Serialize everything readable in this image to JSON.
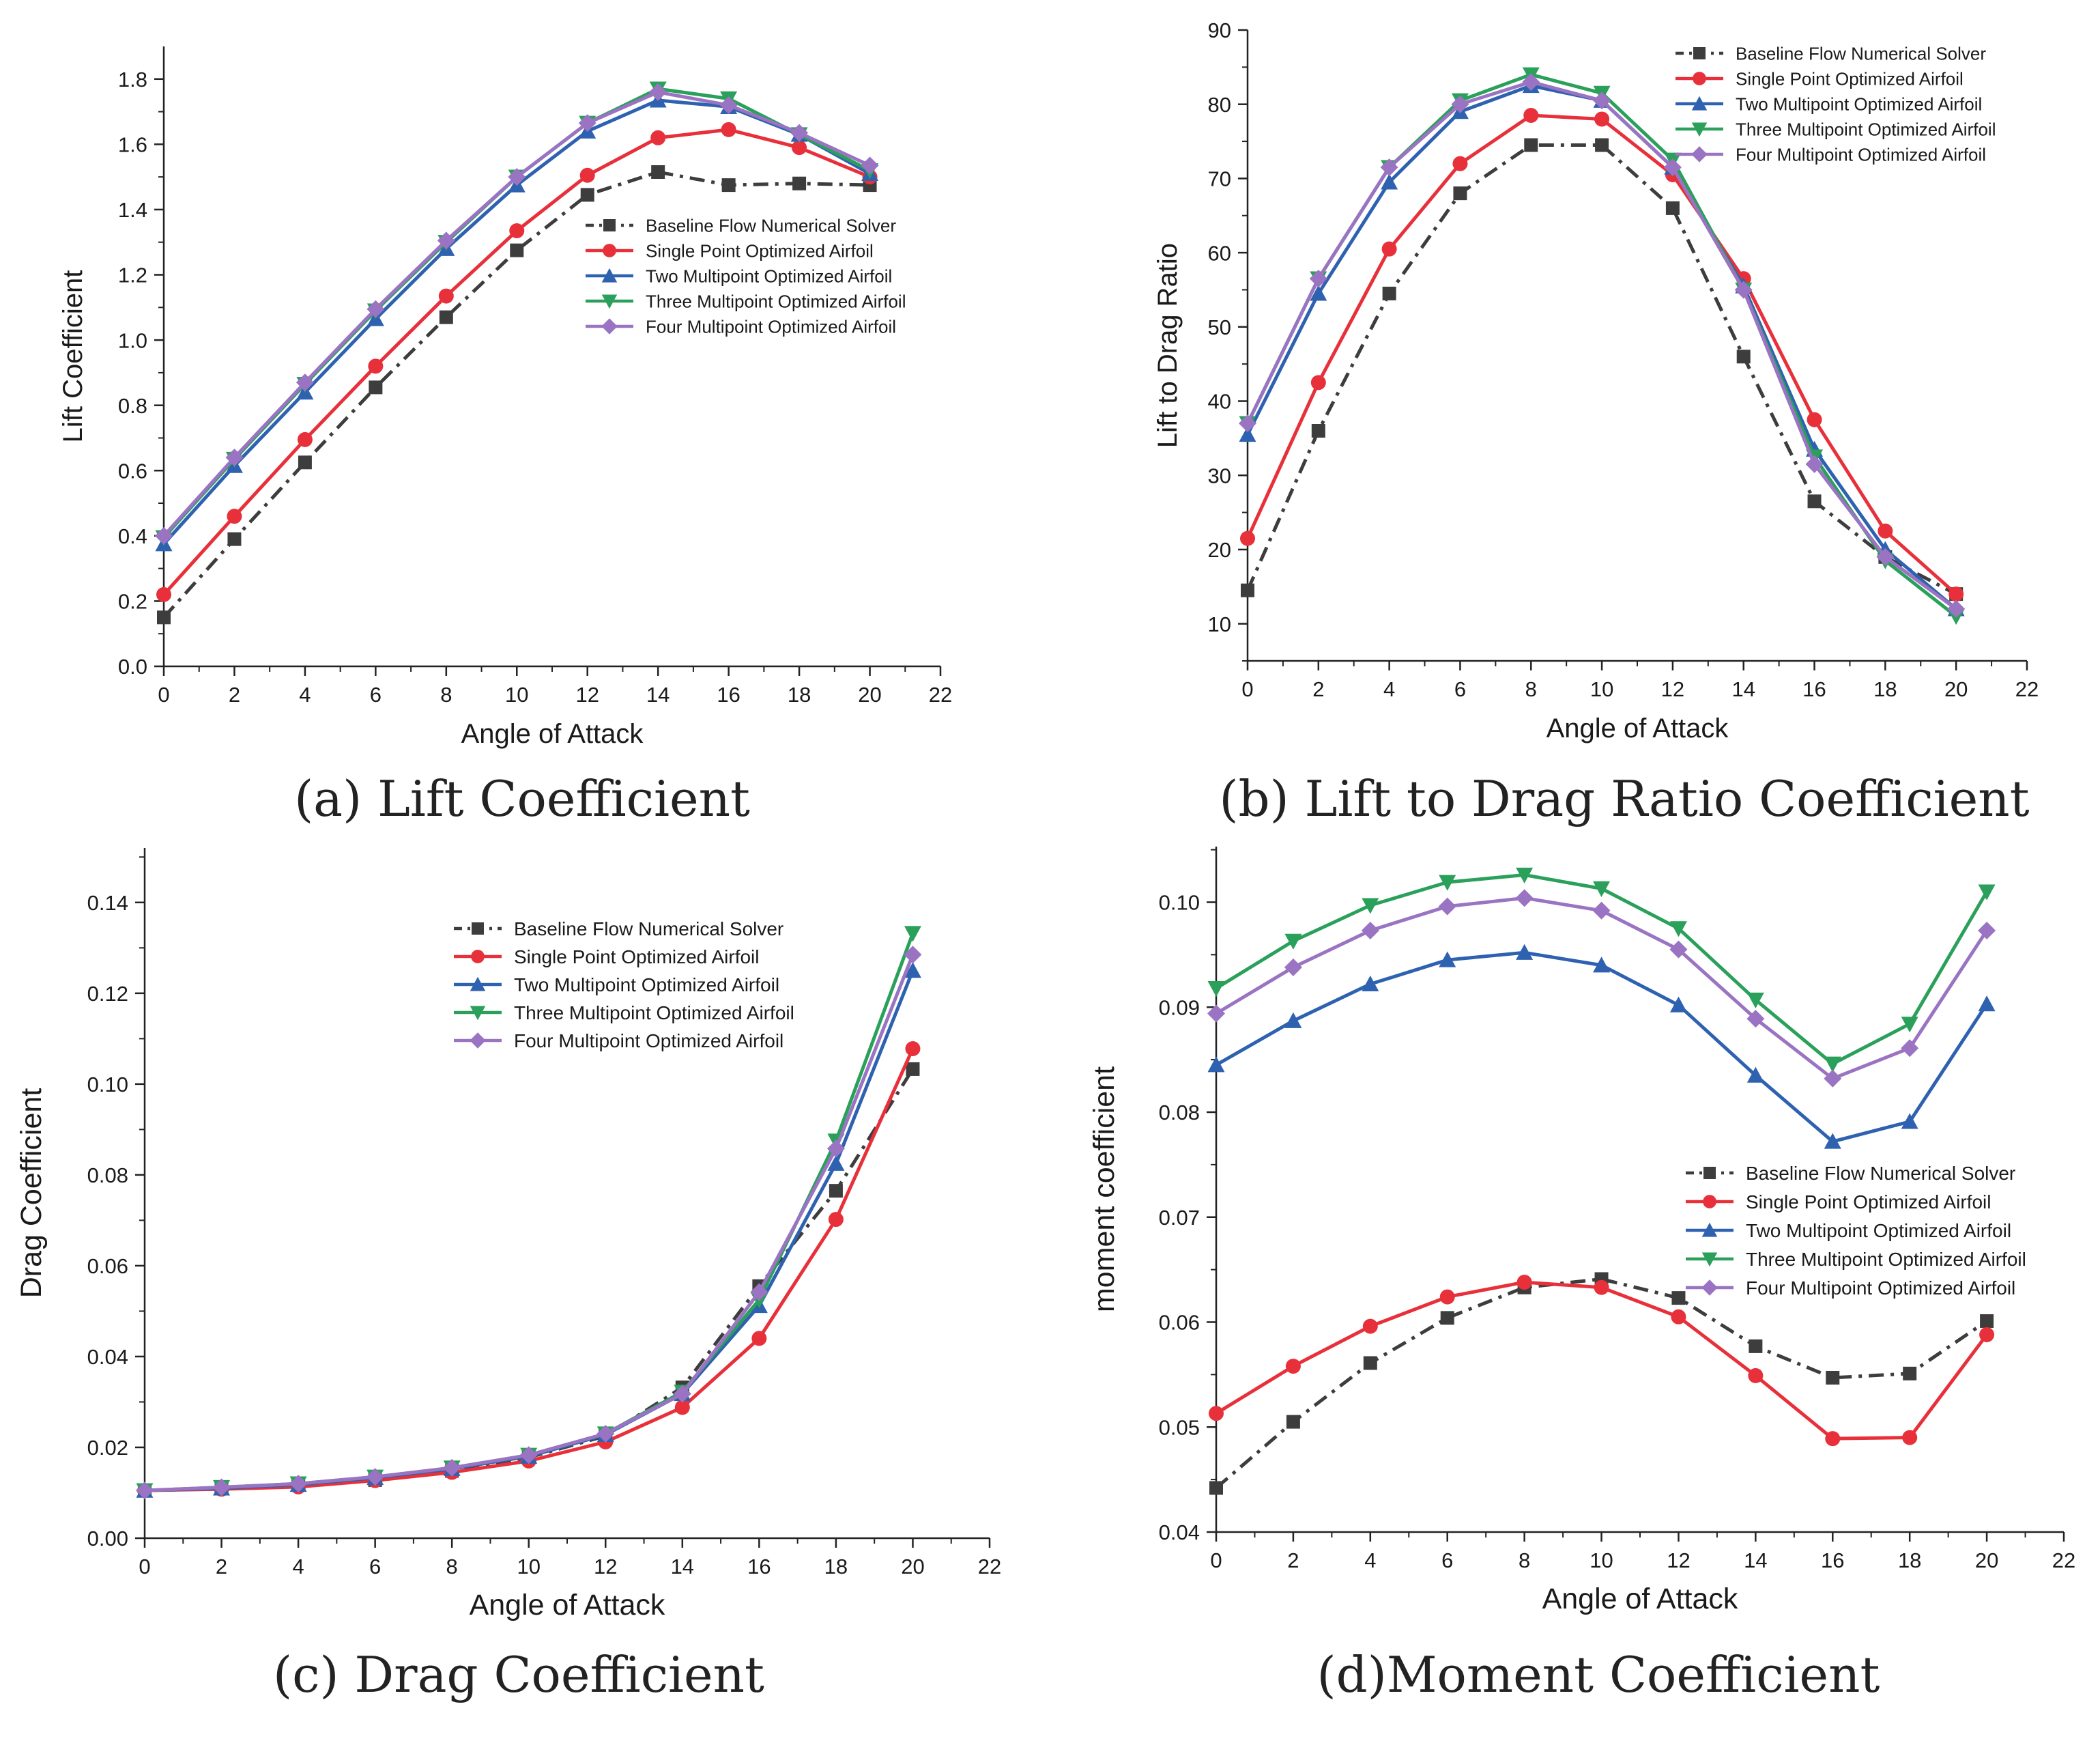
{
  "figure": {
    "colors": {
      "baseline": "#3d3d3d",
      "single": "#e8303a",
      "two": "#2e62b0",
      "three": "#2aa05a",
      "four": "#9a73c2",
      "axis": "#222222"
    }
  },
  "chart_data": [
    {
      "id": "a",
      "type": "line",
      "caption": "(a) Lift Coefficient",
      "xlabel": "Angle of Attack",
      "ylabel": "Lift Coefficient",
      "xlim": [
        0,
        22
      ],
      "ylim": [
        0.0,
        1.9
      ],
      "xticks": [
        "0",
        "2",
        "4",
        "6",
        "8",
        "10",
        "12",
        "14",
        "16",
        "18",
        "20",
        "22"
      ],
      "yticks": [
        "0.0",
        "0.2",
        "0.4",
        "0.6",
        "0.8",
        "1.0",
        "1.2",
        "1.4",
        "1.6",
        "1.8"
      ],
      "legend_position": "center-right",
      "x": [
        0,
        2,
        4,
        6,
        8,
        10,
        12,
        14,
        16,
        18,
        20
      ],
      "series": [
        {
          "name": "Baseline Flow Numerical Solver",
          "values": [
            0.15,
            0.39,
            0.625,
            0.855,
            1.07,
            1.275,
            1.445,
            1.515,
            1.475,
            1.48,
            1.475
          ]
        },
        {
          "name": "Single Point Optimized Airfoil",
          "values": [
            0.22,
            0.46,
            0.695,
            0.92,
            1.135,
            1.335,
            1.505,
            1.62,
            1.645,
            1.59,
            1.5
          ]
        },
        {
          "name": "Two Multipoint Optimized Airfoil",
          "values": [
            0.375,
            0.615,
            0.84,
            1.065,
            1.28,
            1.475,
            1.64,
            1.735,
            1.715,
            1.63,
            1.51
          ]
        },
        {
          "name": "Three Multipoint Optimized Airfoil",
          "values": [
            0.395,
            0.635,
            0.865,
            1.09,
            1.3,
            1.5,
            1.665,
            1.77,
            1.74,
            1.63,
            1.52
          ]
        },
        {
          "name": "Four Multipoint Optimized Airfoil",
          "values": [
            0.4,
            0.64,
            0.87,
            1.095,
            1.305,
            1.5,
            1.665,
            1.76,
            1.72,
            1.635,
            1.535
          ]
        }
      ]
    },
    {
      "id": "b",
      "type": "line",
      "caption": "(b) Lift to Drag Ratio Coefficient",
      "xlabel": "Angle of Attack",
      "ylabel": "Lift to Drag Ratio",
      "xlim": [
        0,
        22
      ],
      "ylim": [
        5,
        90
      ],
      "xticks": [
        "0",
        "2",
        "4",
        "6",
        "8",
        "10",
        "12",
        "14",
        "16",
        "18",
        "20",
        "22"
      ],
      "yticks": [
        "10",
        "20",
        "30",
        "40",
        "50",
        "60",
        "70",
        "80",
        "90"
      ],
      "legend_position": "top-right",
      "x": [
        0,
        2,
        4,
        6,
        8,
        10,
        12,
        14,
        16,
        18,
        20
      ],
      "series": [
        {
          "name": "Baseline Flow Numerical Solver",
          "values": [
            14.5,
            36,
            54.5,
            68,
            74.5,
            74.5,
            66,
            46,
            26.5,
            19,
            14
          ]
        },
        {
          "name": "Single Point Optimized Airfoil",
          "values": [
            21.5,
            42.5,
            60.5,
            72,
            78.5,
            78,
            70.5,
            56.5,
            37.5,
            22.5,
            14
          ]
        },
        {
          "name": "Two Multipoint Optimized Airfoil",
          "values": [
            35.5,
            54.5,
            69.5,
            79,
            82.5,
            80.5,
            71.5,
            55.5,
            33.5,
            20,
            12
          ]
        },
        {
          "name": "Three Multipoint Optimized Airfoil",
          "values": [
            37,
            56.5,
            71.5,
            80.5,
            84,
            81.5,
            72.5,
            55,
            32.5,
            18.5,
            11
          ]
        },
        {
          "name": "Four Multipoint Optimized Airfoil",
          "values": [
            37,
            56.5,
            71.5,
            80,
            83,
            80.5,
            71.5,
            55,
            31.5,
            19,
            12
          ]
        }
      ]
    },
    {
      "id": "c",
      "type": "line",
      "caption": "(c) Drag Coefficient",
      "xlabel": "Angle of Attack",
      "ylabel": "Drag Coefficient",
      "xlim": [
        0,
        22
      ],
      "ylim": [
        0.0,
        0.152
      ],
      "xticks": [
        "0",
        "2",
        "4",
        "6",
        "8",
        "10",
        "12",
        "14",
        "16",
        "18",
        "20",
        "22"
      ],
      "yticks": [
        "0.00",
        "0.02",
        "0.04",
        "0.06",
        "0.08",
        "0.10",
        "0.12",
        "0.14"
      ],
      "legend_position": "top-center",
      "x": [
        0,
        2,
        4,
        6,
        8,
        10,
        12,
        14,
        16,
        18,
        20
      ],
      "series": [
        {
          "name": "Baseline Flow Numerical Solver",
          "values": [
            0.0105,
            0.011,
            0.0118,
            0.0128,
            0.0148,
            0.0178,
            0.0225,
            0.0332,
            0.0555,
            0.0765,
            0.1033
          ]
        },
        {
          "name": "Single Point Optimized Airfoil",
          "values": [
            0.0105,
            0.0108,
            0.0113,
            0.0127,
            0.0145,
            0.017,
            0.0212,
            0.0288,
            0.044,
            0.0702,
            0.1078
          ]
        },
        {
          "name": "Two Multipoint Optimized Airfoil",
          "values": [
            0.0105,
            0.011,
            0.0118,
            0.0133,
            0.0153,
            0.018,
            0.0228,
            0.0318,
            0.0512,
            0.0825,
            0.125
          ]
        },
        {
          "name": "Three Multipoint Optimized Airfoil",
          "values": [
            0.0105,
            0.0112,
            0.012,
            0.0135,
            0.0155,
            0.0183,
            0.023,
            0.0322,
            0.0525,
            0.0875,
            0.1332
          ]
        },
        {
          "name": "Four Multipoint Optimized Airfoil",
          "values": [
            0.0105,
            0.0112,
            0.012,
            0.0135,
            0.0155,
            0.0183,
            0.023,
            0.0318,
            0.0542,
            0.0858,
            0.1285
          ]
        }
      ]
    },
    {
      "id": "d",
      "type": "line",
      "caption": "(d)Moment Coefficient",
      "xlabel": "Angle of Attack",
      "ylabel": "moment coefficient",
      "xlim": [
        0,
        22
      ],
      "ylim": [
        0.04,
        0.1053
      ],
      "xticks": [
        "0",
        "2",
        "4",
        "6",
        "8",
        "10",
        "12",
        "14",
        "16",
        "18",
        "20",
        "22"
      ],
      "yticks": [
        "0.04",
        "0.05",
        "0.06",
        "0.07",
        "0.08",
        "0.09",
        "0.10"
      ],
      "legend_position": "center-right",
      "x": [
        0,
        2,
        4,
        6,
        8,
        10,
        12,
        14,
        16,
        18,
        20
      ],
      "series": [
        {
          "name": "Baseline Flow Numerical Solver",
          "values": [
            0.0442,
            0.0505,
            0.0561,
            0.0604,
            0.0633,
            0.0641,
            0.0623,
            0.0577,
            0.0547,
            0.0551,
            0.0601
          ]
        },
        {
          "name": "Single Point Optimized Airfoil",
          "values": [
            0.0513,
            0.0558,
            0.0596,
            0.0624,
            0.0638,
            0.0633,
            0.0605,
            0.0549,
            0.0489,
            0.049,
            0.0588
          ]
        },
        {
          "name": "Two Multipoint Optimized Airfoil",
          "values": [
            0.0845,
            0.0887,
            0.0922,
            0.0945,
            0.0952,
            0.094,
            0.0902,
            0.0835,
            0.0772,
            0.0791,
            0.0903
          ]
        },
        {
          "name": "Three Multipoint Optimized Airfoil",
          "values": [
            0.0918,
            0.0963,
            0.0997,
            0.1019,
            0.1026,
            0.1013,
            0.0975,
            0.0907,
            0.0846,
            0.0884,
            0.101
          ]
        },
        {
          "name": "Four Multipoint Optimized Airfoil",
          "values": [
            0.0894,
            0.0938,
            0.0973,
            0.0996,
            0.1004,
            0.0992,
            0.0955,
            0.0889,
            0.0832,
            0.0861,
            0.0973
          ]
        }
      ]
    }
  ]
}
